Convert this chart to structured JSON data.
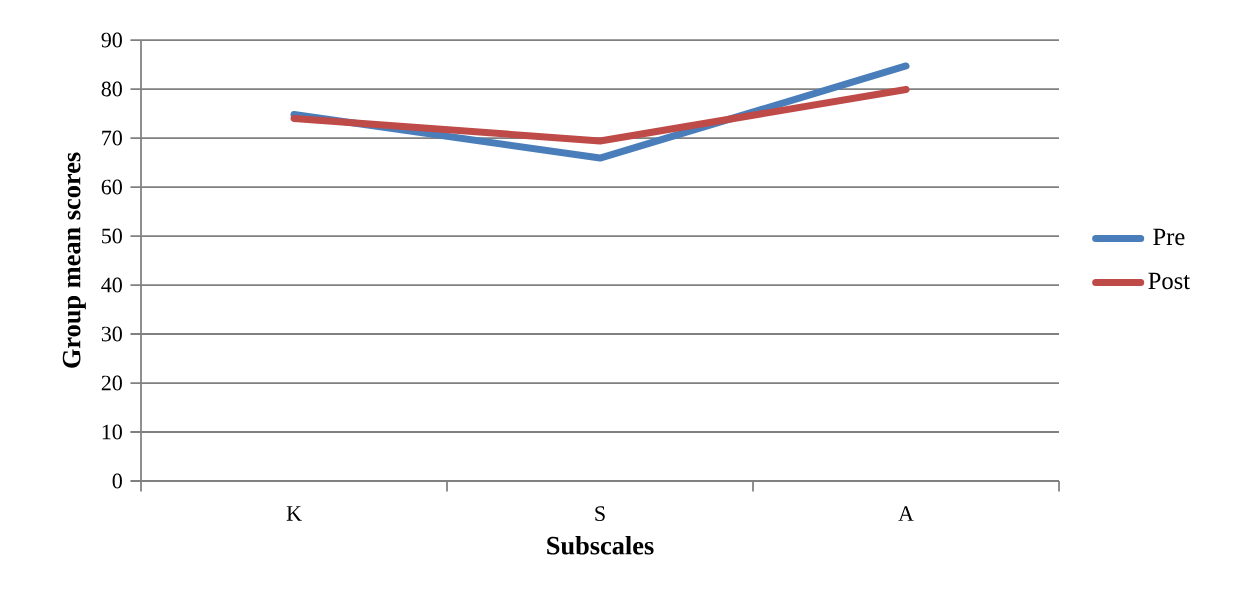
{
  "chart_data": {
    "type": "line",
    "xlabel": "Subscales",
    "ylabel": "Group mean scores",
    "categories": [
      "K",
      "S",
      "A"
    ],
    "series": [
      {
        "name": "Pre",
        "color": "#4a7ebb",
        "values": [
          74.8,
          65.9,
          84.7
        ]
      },
      {
        "name": "Post",
        "color": "#be4b48",
        "values": [
          74.0,
          69.4,
          79.9
        ]
      }
    ],
    "ylim": [
      0,
      90
    ],
    "yticks": [
      0,
      10,
      20,
      30,
      40,
      50,
      60,
      70,
      80,
      90
    ],
    "grid": "y",
    "legend": "right",
    "marker": "none",
    "line_style": "solid"
  }
}
